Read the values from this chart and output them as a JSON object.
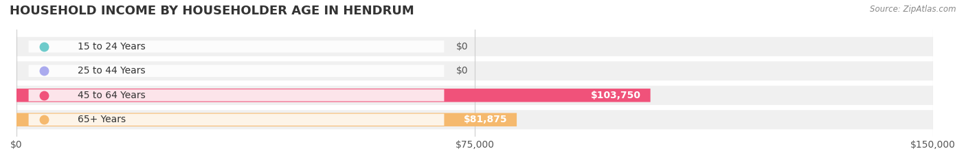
{
  "title": "HOUSEHOLD INCOME BY HOUSEHOLDER AGE IN HENDRUM",
  "source": "Source: ZipAtlas.com",
  "categories": [
    "15 to 24 Years",
    "25 to 44 Years",
    "45 to 64 Years",
    "65+ Years"
  ],
  "values": [
    0,
    0,
    103750,
    81875
  ],
  "bar_colors": [
    "#6ecbcb",
    "#aaaaee",
    "#f0527a",
    "#f5b96e"
  ],
  "bar_bg_color": "#eeeeee",
  "background_color": "#ffffff",
  "xlim": [
    0,
    150000
  ],
  "xticks": [
    0,
    75000,
    150000
  ],
  "xtick_labels": [
    "$0",
    "$75,000",
    "$150,000"
  ],
  "value_labels": [
    "$0",
    "$0",
    "$103,750",
    "$81,875"
  ],
  "title_fontsize": 13,
  "tick_fontsize": 10,
  "bar_label_fontsize": 10,
  "category_fontsize": 10,
  "bar_height": 0.55,
  "row_bg_colors": [
    "#f5f5f5",
    "#f5f5f5",
    "#f5f5f5",
    "#f5f5f5"
  ]
}
